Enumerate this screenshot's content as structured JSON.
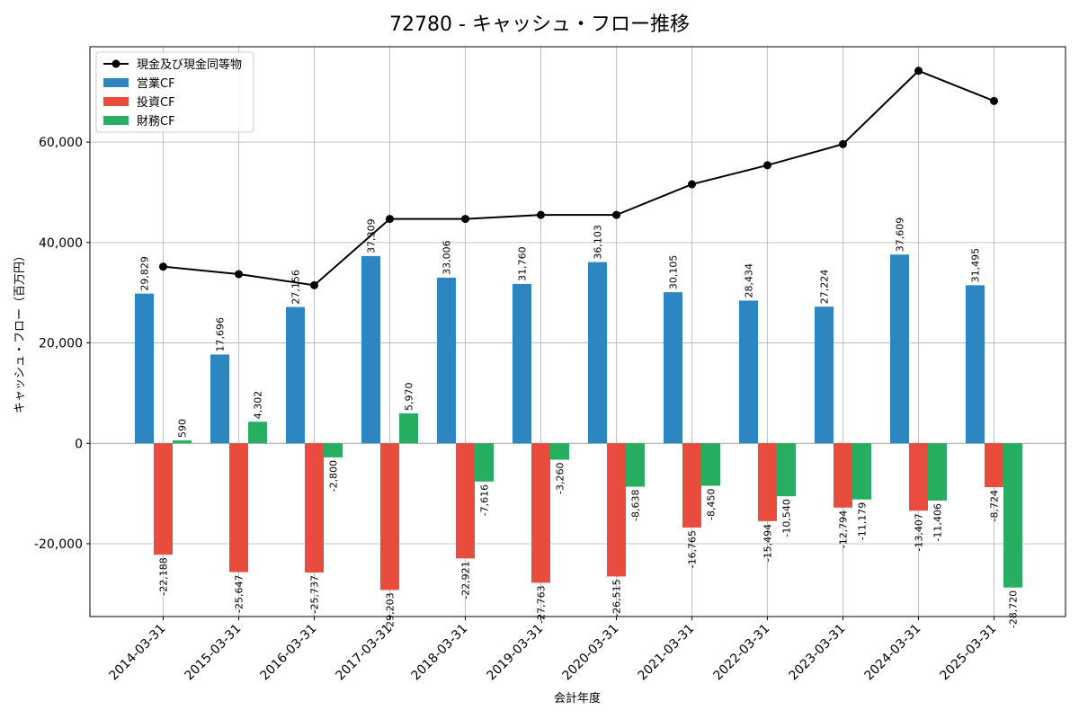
{
  "chart_data": {
    "type": "bar",
    "title": "72780 - キャッシュ・フロー推移",
    "xlabel": "会計年度",
    "ylabel": "キャッシュ・フロー（百万円）",
    "ylim": [
      -34500,
      79000
    ],
    "yticks": [
      -20000,
      0,
      20000,
      40000,
      60000
    ],
    "ytick_labels": [
      "-20,000",
      "0",
      "20,000",
      "40,000",
      "60,000"
    ],
    "grid": true,
    "legend_position": "top-left",
    "categories": [
      "2014-03-31",
      "2015-03-31",
      "2016-03-31",
      "2017-03-31",
      "2018-03-31",
      "2019-03-31",
      "2020-03-31",
      "2021-03-31",
      "2022-03-31",
      "2023-03-31",
      "2024-03-31",
      "2025-03-31"
    ],
    "series": [
      {
        "name": "営業CF",
        "kind": "bar",
        "color": "#2e86c1",
        "values": [
          29829,
          17696,
          27156,
          37309,
          33006,
          31760,
          36103,
          30105,
          28434,
          27224,
          37609,
          31495
        ],
        "labels": [
          "29,829",
          "17,696",
          "27,156",
          "37,309",
          "33,006",
          "31,760",
          "36,103",
          "30,105",
          "28,434",
          "27,224",
          "37,609",
          "31,495"
        ]
      },
      {
        "name": "投資CF",
        "kind": "bar",
        "color": "#e74c3c",
        "values": [
          -22188,
          -25647,
          -25737,
          -29203,
          -22921,
          -27763,
          -26515,
          -16765,
          -15494,
          -12794,
          -13407,
          -8724
        ],
        "labels": [
          "-22,188",
          "-25,647",
          "-25,737",
          "-29,203",
          "-22,921",
          "-27,763",
          "-26,515",
          "-16,765",
          "-15,494",
          "-12,794",
          "-13,407",
          "-8,724"
        ]
      },
      {
        "name": "財務CF",
        "kind": "bar",
        "color": "#27ae60",
        "values": [
          590,
          4302,
          -2800,
          5970,
          -7616,
          -3260,
          -8638,
          -8450,
          -10540,
          -11179,
          -11406,
          -28720
        ],
        "labels": [
          "590",
          "4,302",
          "-2,800",
          "5,970",
          "-7,616",
          "-3,260",
          "-8,638",
          "-8,450",
          "-10,540",
          "-11,179",
          "-11,406",
          "-28,720"
        ]
      },
      {
        "name": "現金及び現金同等物",
        "kind": "line",
        "color": "#000000",
        "values": [
          35200,
          33700,
          31500,
          44700,
          44700,
          45500,
          45500,
          51600,
          55400,
          59600,
          74200,
          68200
        ]
      }
    ]
  }
}
